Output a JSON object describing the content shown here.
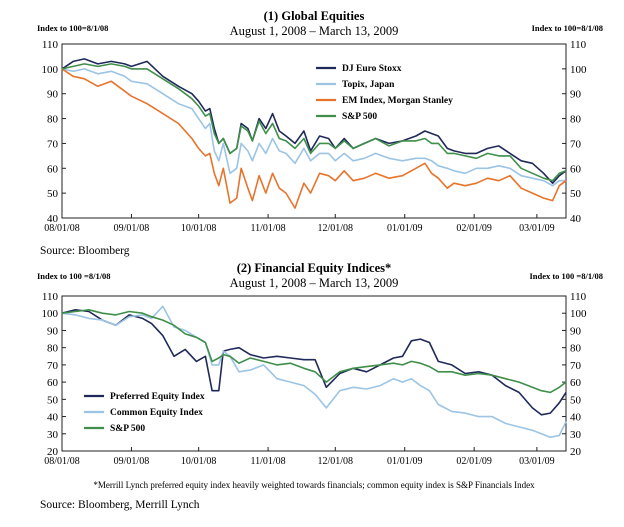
{
  "chart_data": [
    {
      "type": "line",
      "title": "(1) Global Equities",
      "subtitle": "August 1, 2008 – March 13, 2009",
      "left_axis_label": "Index to 100=8/1/08",
      "right_axis_label": "Index to 100=8/1/08",
      "ylim": [
        40,
        110
      ],
      "yticks": [
        40,
        50,
        60,
        70,
        80,
        90,
        100,
        110
      ],
      "x_ticks": [
        "08/01/08",
        "09/01/08",
        "10/01/08",
        "11/01/08",
        "12/01/08",
        "01/01/09",
        "02/01/09",
        "03/01/09"
      ],
      "xlim_days": [
        0,
        225
      ],
      "grid": false,
      "legend_position": "upper-right",
      "source": "Source: Bloomberg",
      "series": [
        {
          "name": "DJ Euro Stoxx",
          "color": "#1f2a5a",
          "x": [
            0,
            5,
            10,
            16,
            22,
            28,
            31,
            38,
            45,
            52,
            58,
            61,
            64,
            66,
            68,
            70,
            72,
            75,
            78,
            80,
            83,
            85,
            88,
            91,
            94,
            97,
            100,
            104,
            108,
            111,
            115,
            119,
            122,
            126,
            130,
            135,
            140,
            146,
            152,
            158,
            162,
            165,
            168,
            172,
            175,
            180,
            185,
            190,
            195,
            200,
            205,
            210,
            215,
            219,
            222,
            225
          ],
          "y": [
            100,
            103,
            104,
            102,
            103,
            102,
            101,
            103,
            97,
            93,
            90,
            87,
            83,
            84,
            76,
            70,
            72,
            66,
            68,
            78,
            76,
            71,
            80,
            76,
            82,
            75,
            73,
            70,
            75,
            67,
            73,
            72,
            68,
            72,
            68,
            70,
            72,
            70,
            71,
            73,
            75,
            74,
            73,
            68,
            67,
            66,
            66,
            68,
            69,
            66,
            63,
            62,
            58,
            54,
            57,
            59
          ]
        },
        {
          "name": "Topix, Japan",
          "color": "#9cc4e4",
          "x": [
            0,
            5,
            10,
            16,
            22,
            28,
            31,
            38,
            45,
            52,
            58,
            61,
            64,
            66,
            68,
            70,
            72,
            75,
            78,
            80,
            83,
            85,
            88,
            91,
            94,
            97,
            100,
            104,
            108,
            111,
            115,
            119,
            122,
            126,
            130,
            135,
            140,
            146,
            152,
            158,
            162,
            165,
            168,
            172,
            175,
            180,
            185,
            190,
            195,
            200,
            205,
            210,
            215,
            219,
            222,
            225
          ],
          "y": [
            100,
            99,
            100,
            98,
            99,
            97,
            95,
            94,
            90,
            86,
            84,
            80,
            76,
            78,
            67,
            63,
            70,
            58,
            60,
            70,
            67,
            63,
            70,
            66,
            72,
            67,
            66,
            62,
            68,
            63,
            66,
            66,
            63,
            66,
            63,
            64,
            66,
            64,
            63,
            64,
            64,
            63,
            61,
            60,
            59,
            58,
            60,
            60,
            61,
            60,
            57,
            56,
            55,
            53,
            55,
            55
          ]
        },
        {
          "name": "EM Index, Morgan Stanley",
          "color": "#e8742c",
          "x": [
            0,
            5,
            10,
            16,
            22,
            28,
            31,
            38,
            45,
            52,
            58,
            61,
            64,
            66,
            68,
            70,
            72,
            75,
            78,
            80,
            83,
            85,
            88,
            91,
            94,
            97,
            100,
            104,
            108,
            111,
            115,
            119,
            122,
            126,
            130,
            135,
            140,
            146,
            152,
            158,
            162,
            165,
            168,
            172,
            175,
            180,
            185,
            190,
            195,
            200,
            205,
            210,
            215,
            219,
            222,
            225
          ],
          "y": [
            100,
            97,
            96,
            93,
            95,
            91,
            89,
            86,
            82,
            78,
            72,
            68,
            65,
            66,
            58,
            53,
            60,
            46,
            48,
            60,
            52,
            47,
            57,
            50,
            58,
            52,
            50,
            44,
            54,
            50,
            58,
            57,
            55,
            59,
            55,
            56,
            58,
            56,
            57,
            60,
            62,
            58,
            56,
            52,
            54,
            53,
            54,
            56,
            55,
            57,
            52,
            50,
            48,
            47,
            53,
            55
          ]
        },
        {
          "name": "S&P 500",
          "color": "#3f8f4a",
          "x": [
            0,
            5,
            10,
            16,
            22,
            28,
            31,
            38,
            45,
            52,
            58,
            61,
            64,
            66,
            68,
            70,
            72,
            75,
            78,
            80,
            83,
            85,
            88,
            91,
            94,
            97,
            100,
            104,
            108,
            111,
            115,
            119,
            122,
            126,
            130,
            135,
            140,
            146,
            152,
            158,
            162,
            165,
            168,
            172,
            175,
            180,
            185,
            190,
            195,
            200,
            205,
            210,
            215,
            219,
            222,
            225
          ],
          "y": [
            100,
            101,
            102,
            101,
            102,
            101,
            100,
            100,
            96,
            92,
            88,
            85,
            81,
            82,
            74,
            70,
            72,
            66,
            68,
            77,
            75,
            71,
            79,
            74,
            78,
            72,
            71,
            68,
            72,
            66,
            70,
            70,
            68,
            71,
            68,
            70,
            72,
            69,
            71,
            71,
            72,
            70,
            70,
            66,
            66,
            65,
            64,
            66,
            65,
            65,
            60,
            58,
            56,
            55,
            58,
            59
          ]
        }
      ]
    },
    {
      "type": "line",
      "title": "(2) Financial Equity Indices*",
      "subtitle": "August 1, 2008 – March 13, 2009",
      "left_axis_label": "Index to 100 =8/1/08",
      "right_axis_label": "Index to 100 =8/1/08",
      "ylim": [
        20,
        110
      ],
      "yticks": [
        20,
        30,
        40,
        50,
        60,
        70,
        80,
        90,
        100,
        110
      ],
      "x_ticks": [
        "08/01/08",
        "09/01/08",
        "10/01/08",
        "11/01/08",
        "12/01/08",
        "01/01/09",
        "02/01/09",
        "03/01/09"
      ],
      "xlim_days": [
        0,
        225
      ],
      "grid": false,
      "legend_position": "lower-left",
      "footnote": "*Merrill Lynch preferred equity index heavily weighted towards financials; common equity index is S&P Financials Index",
      "source": "Source: Bloomberg, Merrill Lynch",
      "series": [
        {
          "name": "Preferred Equity Index",
          "color": "#1f2a5a",
          "x": [
            0,
            6,
            12,
            18,
            24,
            30,
            36,
            40,
            45,
            50,
            55,
            60,
            64,
            67,
            70,
            72,
            75,
            79,
            84,
            90,
            96,
            102,
            108,
            113,
            118,
            124,
            130,
            136,
            142,
            148,
            152,
            156,
            160,
            164,
            168,
            174,
            180,
            186,
            192,
            198,
            204,
            210,
            214,
            218,
            222,
            225
          ],
          "y": [
            100,
            102,
            101,
            96,
            93,
            99,
            97,
            94,
            87,
            75,
            79,
            72,
            75,
            55,
            55,
            78,
            79,
            80,
            76,
            74,
            75,
            74,
            73,
            73,
            57,
            65,
            68,
            66,
            70,
            74,
            75,
            84,
            85,
            83,
            72,
            70,
            65,
            66,
            64,
            58,
            54,
            45,
            41,
            42,
            48,
            54
          ]
        },
        {
          "name": "Common Equity Index",
          "color": "#9cc4e4",
          "x": [
            0,
            6,
            12,
            18,
            24,
            30,
            36,
            40,
            45,
            50,
            55,
            60,
            64,
            67,
            70,
            72,
            75,
            79,
            84,
            90,
            96,
            102,
            108,
            113,
            118,
            124,
            130,
            136,
            142,
            148,
            152,
            156,
            160,
            164,
            168,
            174,
            180,
            186,
            192,
            198,
            204,
            210,
            214,
            218,
            222,
            225
          ],
          "y": [
            100,
            99,
            97,
            96,
            93,
            98,
            99,
            97,
            104,
            92,
            90,
            86,
            83,
            70,
            70,
            78,
            75,
            66,
            67,
            70,
            62,
            60,
            58,
            53,
            45,
            55,
            57,
            56,
            58,
            62,
            60,
            62,
            58,
            55,
            47,
            43,
            42,
            40,
            40,
            36,
            34,
            32,
            30,
            28,
            29,
            37
          ]
        },
        {
          "name": "S&P 500",
          "color": "#3f8f4a",
          "x": [
            0,
            6,
            12,
            18,
            24,
            30,
            36,
            40,
            45,
            50,
            55,
            60,
            64,
            67,
            70,
            72,
            75,
            79,
            84,
            90,
            96,
            102,
            108,
            113,
            118,
            124,
            130,
            136,
            142,
            148,
            152,
            156,
            160,
            164,
            168,
            174,
            180,
            186,
            192,
            198,
            204,
            210,
            214,
            218,
            222,
            225
          ],
          "y": [
            100,
            101,
            102,
            100,
            99,
            101,
            100,
            98,
            96,
            93,
            88,
            86,
            83,
            72,
            74,
            76,
            75,
            71,
            74,
            72,
            70,
            71,
            68,
            66,
            60,
            66,
            68,
            69,
            70,
            71,
            70,
            72,
            71,
            69,
            66,
            66,
            64,
            65,
            64,
            62,
            60,
            57,
            55,
            54,
            57,
            60
          ]
        }
      ]
    }
  ]
}
